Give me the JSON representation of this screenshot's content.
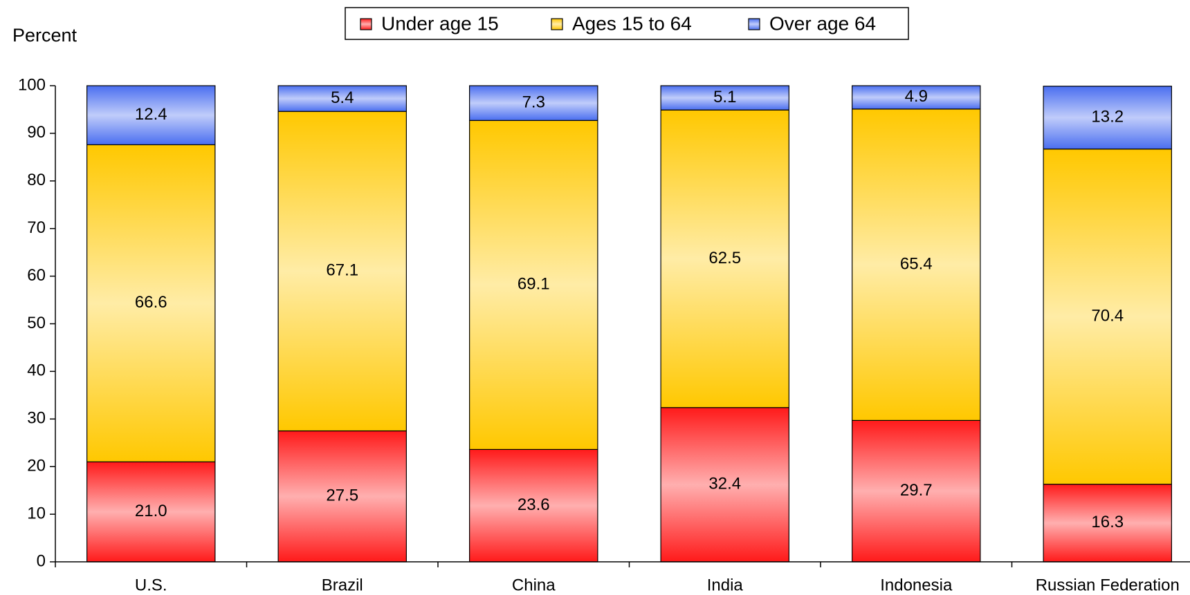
{
  "chart_data": {
    "type": "stacked_bar",
    "y_label": "Percent",
    "categories": [
      "U.S.",
      "Brazil",
      "China",
      "India",
      "Indonesia",
      "Russian Federation"
    ],
    "series": [
      {
        "name": "Under age 15",
        "color": "#ff1a1a",
        "values": [
          21.0,
          27.5,
          23.6,
          32.4,
          29.7,
          16.3
        ],
        "value_labels": [
          "21.0",
          "27.5",
          "23.6",
          "32.4",
          "29.7",
          "16.3"
        ]
      },
      {
        "name": "Ages 15 to 64",
        "color": "#ffc800",
        "values": [
          66.6,
          67.1,
          69.1,
          62.5,
          65.4,
          70.4
        ],
        "value_labels": [
          "66.6",
          "67.1",
          "69.1",
          "62.5",
          "65.4",
          "70.4"
        ]
      },
      {
        "name": "Over age 64",
        "color": "#4a6ef0",
        "values": [
          12.4,
          5.4,
          7.3,
          5.1,
          4.9,
          13.2
        ],
        "value_labels": [
          "12.4",
          "5.4",
          "7.3",
          "5.1",
          "4.9",
          "13.2"
        ]
      }
    ],
    "ylim": [
      0,
      100
    ],
    "yticks": [
      0,
      10,
      20,
      30,
      40,
      50,
      60,
      70,
      80,
      90,
      100
    ],
    "grid": false,
    "legend": "top"
  }
}
